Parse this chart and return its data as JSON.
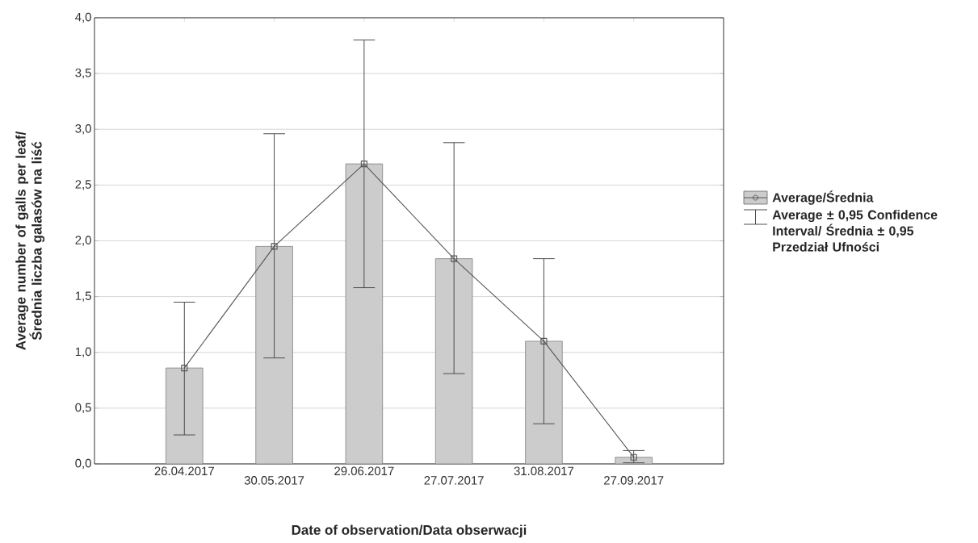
{
  "chart_data": {
    "type": "bar",
    "xlabel": "Date of observation/Data obserwacji",
    "ylabel": "Average number of galls per leaf/ Średnia liczba galasów na liść",
    "categories": [
      "26.04.2017",
      "30.05.2017",
      "29.06.2017",
      "27.07.2017",
      "31.08.2017",
      "27.09.2017"
    ],
    "series": [
      {
        "name": "Average/Średnia",
        "color": "#cccccc",
        "values": [
          0.86,
          1.95,
          2.69,
          1.84,
          1.1,
          0.06
        ],
        "errors": [
          [
            0.26,
            1.45
          ],
          [
            0.95,
            2.96
          ],
          [
            1.58,
            3.8
          ],
          [
            0.81,
            2.88
          ],
          [
            0.36,
            1.84
          ],
          [
            0.01,
            0.12
          ]
        ]
      },
      {
        "type": "line",
        "color": "#555555",
        "marker": "square",
        "values": [
          0.86,
          1.95,
          2.69,
          1.84,
          1.1,
          0.06
        ]
      }
    ],
    "ylim": [
      0,
      4
    ],
    "yticks": [
      {
        "value": 0,
        "label": "0,0"
      },
      {
        "value": 0.5,
        "label": "0,5"
      },
      {
        "value": 1,
        "label": "1,0"
      },
      {
        "value": 1.5,
        "label": "1,5"
      },
      {
        "value": 2,
        "label": "2,0"
      },
      {
        "value": 2.5,
        "label": "2,5"
      },
      {
        "value": 3,
        "label": "3,0"
      },
      {
        "value": 3.5,
        "label": "3,5"
      },
      {
        "value": 4,
        "label": "4,0"
      }
    ],
    "grid": "y",
    "legend": "right",
    "annotations": [
      "Average ± 0,95 Confidence Interval/ Średnia ± 0,95 Przedział Ufności"
    ]
  }
}
